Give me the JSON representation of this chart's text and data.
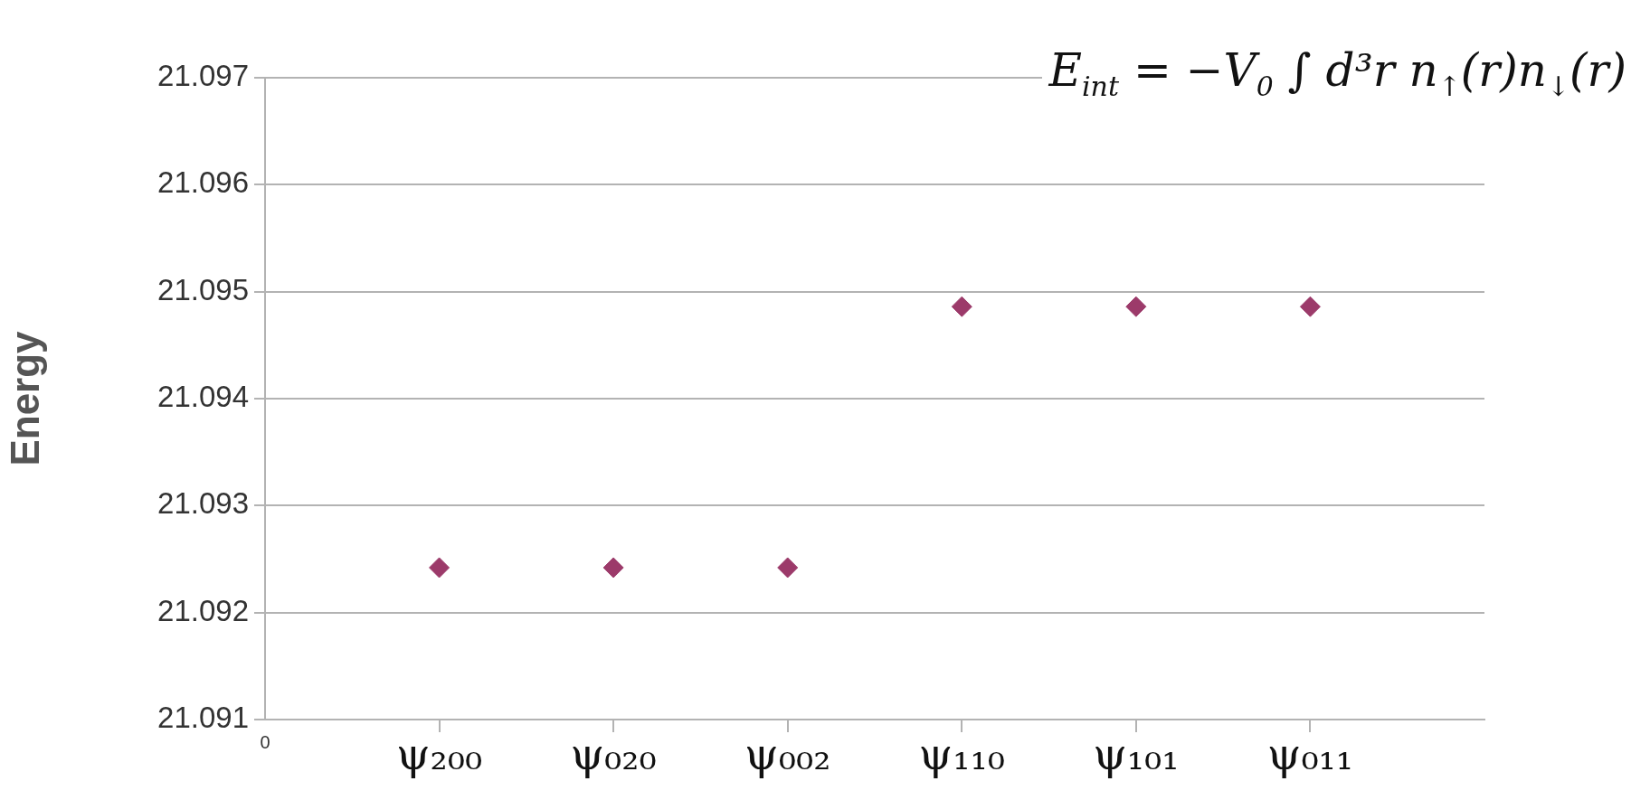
{
  "chart_data": {
    "type": "scatter",
    "ylabel": "Energy",
    "annotations": [
      "E$_{int}$ = −V$_{0}$ ∫ d³r n$_{↑}$(r)n$_{↓}$(r)",
      "0"
    ],
    "categories": [
      "ψ₂₀₀",
      "ψ₀₂₀",
      "ψ₀₀₂",
      "ψ₁₁₀",
      "ψ₁₀₁",
      "ψ₀₁₁"
    ],
    "series": [
      {
        "color": "#9c3a6a",
        "values": [
          21.09242,
          21.09242,
          21.09242,
          21.09486,
          21.09486,
          21.09486
        ]
      }
    ],
    "ylim": [
      21.091,
      21.097
    ],
    "yticks": [
      21.091,
      21.092,
      21.093,
      21.094,
      21.095,
      21.096,
      21.097
    ],
    "grid": "y",
    "legend": false,
    "marker": "diamond"
  }
}
